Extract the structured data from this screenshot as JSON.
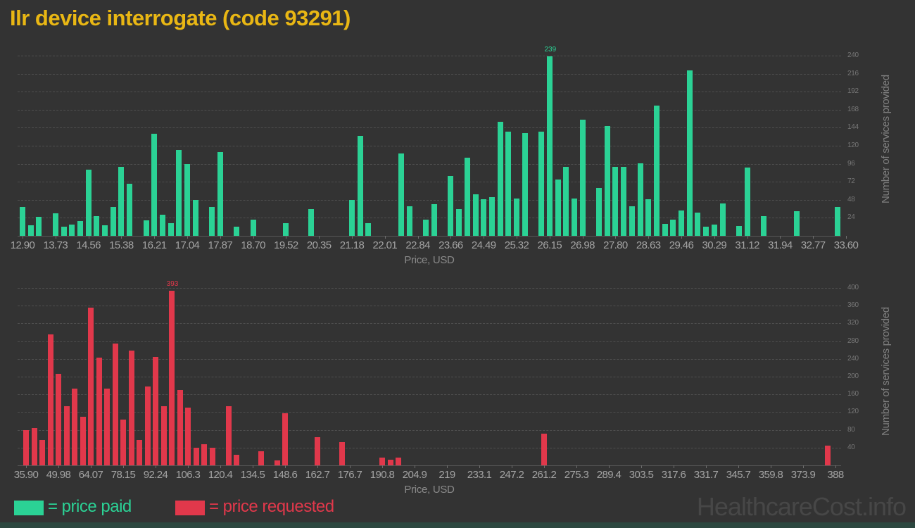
{
  "title": "Ilr device interrogate (code 93291)",
  "watermark": "HealthcareCost.info",
  "colors": {
    "background": "#333333",
    "title": "#e9b714",
    "price_paid_green": "#2bd295",
    "price_requested_red": "#e1384b",
    "grid": "#4e4e4e",
    "tick_text": "#a3a3a3",
    "axis_title_text": "#7f7f7f",
    "watermark": "#474747"
  },
  "legend": [
    {
      "label": "= price paid",
      "color": "#2bd295"
    },
    {
      "label": "= price requested",
      "color": "#e1384b"
    }
  ],
  "chart_data": [
    {
      "type": "bar",
      "name": "price-paid-histogram",
      "series": "price paid",
      "color": "#2bd295",
      "xlabel": "Price, USD",
      "ylabel": "Number of services provided",
      "grid": true,
      "legend_position": "bottom",
      "x_ticks": [
        "12.90",
        "13.73",
        "14.56",
        "15.38",
        "16.21",
        "17.04",
        "17.87",
        "18.70",
        "19.52",
        "20.35",
        "21.18",
        "22.01",
        "22.84",
        "23.66",
        "24.49",
        "25.32",
        "26.15",
        "26.98",
        "27.80",
        "28.63",
        "29.46",
        "30.29",
        "31.12",
        "31.94",
        "32.77",
        "33.60"
      ],
      "y_ticks": [
        24,
        48,
        72,
        96,
        120,
        144,
        168,
        192,
        216,
        240
      ],
      "ylim": [
        0,
        258
      ],
      "bins_per_tick_interval": 4,
      "values": [
        38,
        14,
        25,
        0,
        30,
        12,
        15,
        20,
        88,
        26,
        14,
        38,
        92,
        69,
        0,
        21,
        136,
        28,
        17,
        114,
        96,
        48,
        0,
        38,
        112,
        0,
        12,
        0,
        22,
        0,
        0,
        0,
        17,
        0,
        0,
        36,
        0,
        0,
        0,
        0,
        48,
        133,
        17,
        0,
        0,
        0,
        110,
        39,
        0,
        22,
        42,
        0,
        80,
        36,
        104,
        55,
        49,
        52,
        152,
        139,
        50,
        137,
        0,
        139,
        239,
        75,
        92,
        50,
        155,
        0,
        64,
        146,
        92,
        92,
        39,
        97,
        49,
        173,
        16,
        22,
        34,
        220,
        31,
        12,
        15,
        43,
        0,
        13,
        91,
        0,
        26,
        0,
        0,
        0,
        33,
        0,
        0,
        0,
        0,
        38
      ],
      "peak_label": {
        "index": 64,
        "text": "239"
      }
    },
    {
      "type": "bar",
      "name": "price-requested-histogram",
      "series": "price requested",
      "color": "#e1384b",
      "xlabel": "Price, USD",
      "ylabel": "Number of services provided",
      "grid": true,
      "legend_position": "bottom",
      "x_ticks": [
        "35.90",
        "49.98",
        "64.07",
        "78.15",
        "92.24",
        "106.3",
        "120.4",
        "134.5",
        "148.6",
        "162.7",
        "176.7",
        "190.8",
        "204.9",
        "219",
        "233.1",
        "247.2",
        "261.2",
        "275.3",
        "289.4",
        "303.5",
        "317.6",
        "331.7",
        "345.7",
        "359.8",
        "373.9",
        "388"
      ],
      "y_ticks": [
        40,
        80,
        120,
        160,
        200,
        240,
        280,
        320,
        360,
        400
      ],
      "ylim": [
        0,
        422
      ],
      "bins_per_tick_interval": 4,
      "values": [
        80,
        84,
        57,
        295,
        206,
        133,
        173,
        109,
        355,
        243,
        173,
        274,
        103,
        259,
        57,
        178,
        244,
        134,
        393,
        170,
        130,
        39,
        48,
        40,
        0,
        134,
        24,
        0,
        0,
        32,
        0,
        11,
        117,
        0,
        0,
        0,
        64,
        0,
        0,
        53,
        0,
        0,
        0,
        0,
        18,
        12,
        18,
        0,
        0,
        0,
        0,
        0,
        0,
        0,
        0,
        0,
        0,
        0,
        0,
        0,
        0,
        0,
        0,
        0,
        72,
        0,
        0,
        0,
        0,
        0,
        0,
        0,
        0,
        0,
        0,
        0,
        0,
        0,
        0,
        0,
        0,
        0,
        0,
        0,
        0,
        0,
        0,
        0,
        0,
        0,
        0,
        0,
        0,
        0,
        0,
        0,
        0,
        0,
        0,
        44
      ],
      "peak_label": {
        "index": 18,
        "text": "393"
      }
    }
  ]
}
